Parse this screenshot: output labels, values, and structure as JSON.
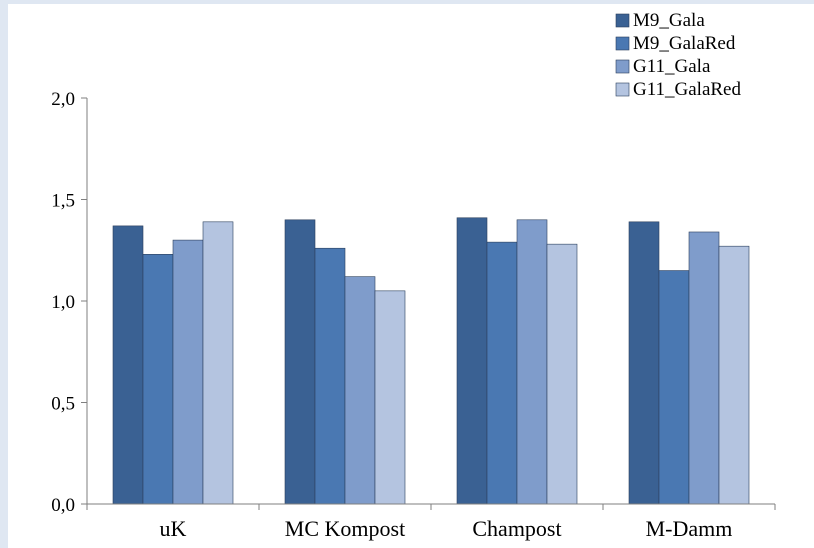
{
  "chart_data": {
    "type": "bar",
    "categories": [
      "uK",
      "MC Kompost",
      "Champost",
      "M-Damm"
    ],
    "series": [
      {
        "name": "M9_Gala",
        "color": "#3a6193",
        "values": [
          1.37,
          1.4,
          1.41,
          1.39
        ]
      },
      {
        "name": "M9_GalaRed",
        "color": "#4a78b2",
        "values": [
          1.23,
          1.26,
          1.29,
          1.15
        ]
      },
      {
        "name": "G11_Gala",
        "color": "#7f9ccb",
        "values": [
          1.3,
          1.12,
          1.4,
          1.34
        ]
      },
      {
        "name": "G11_GalaRed",
        "color": "#b4c4e0",
        "values": [
          1.39,
          1.05,
          1.28,
          1.27
        ]
      }
    ],
    "ylim": [
      0,
      2.0
    ],
    "yticks": [
      0.0,
      0.5,
      1.0,
      1.5,
      2.0
    ],
    "ytick_labels": [
      "0,0",
      "0,5",
      "1,0",
      "1,5",
      "2,0"
    ],
    "xlabel": "",
    "ylabel": "",
    "grid": false,
    "legend": "top-right"
  }
}
